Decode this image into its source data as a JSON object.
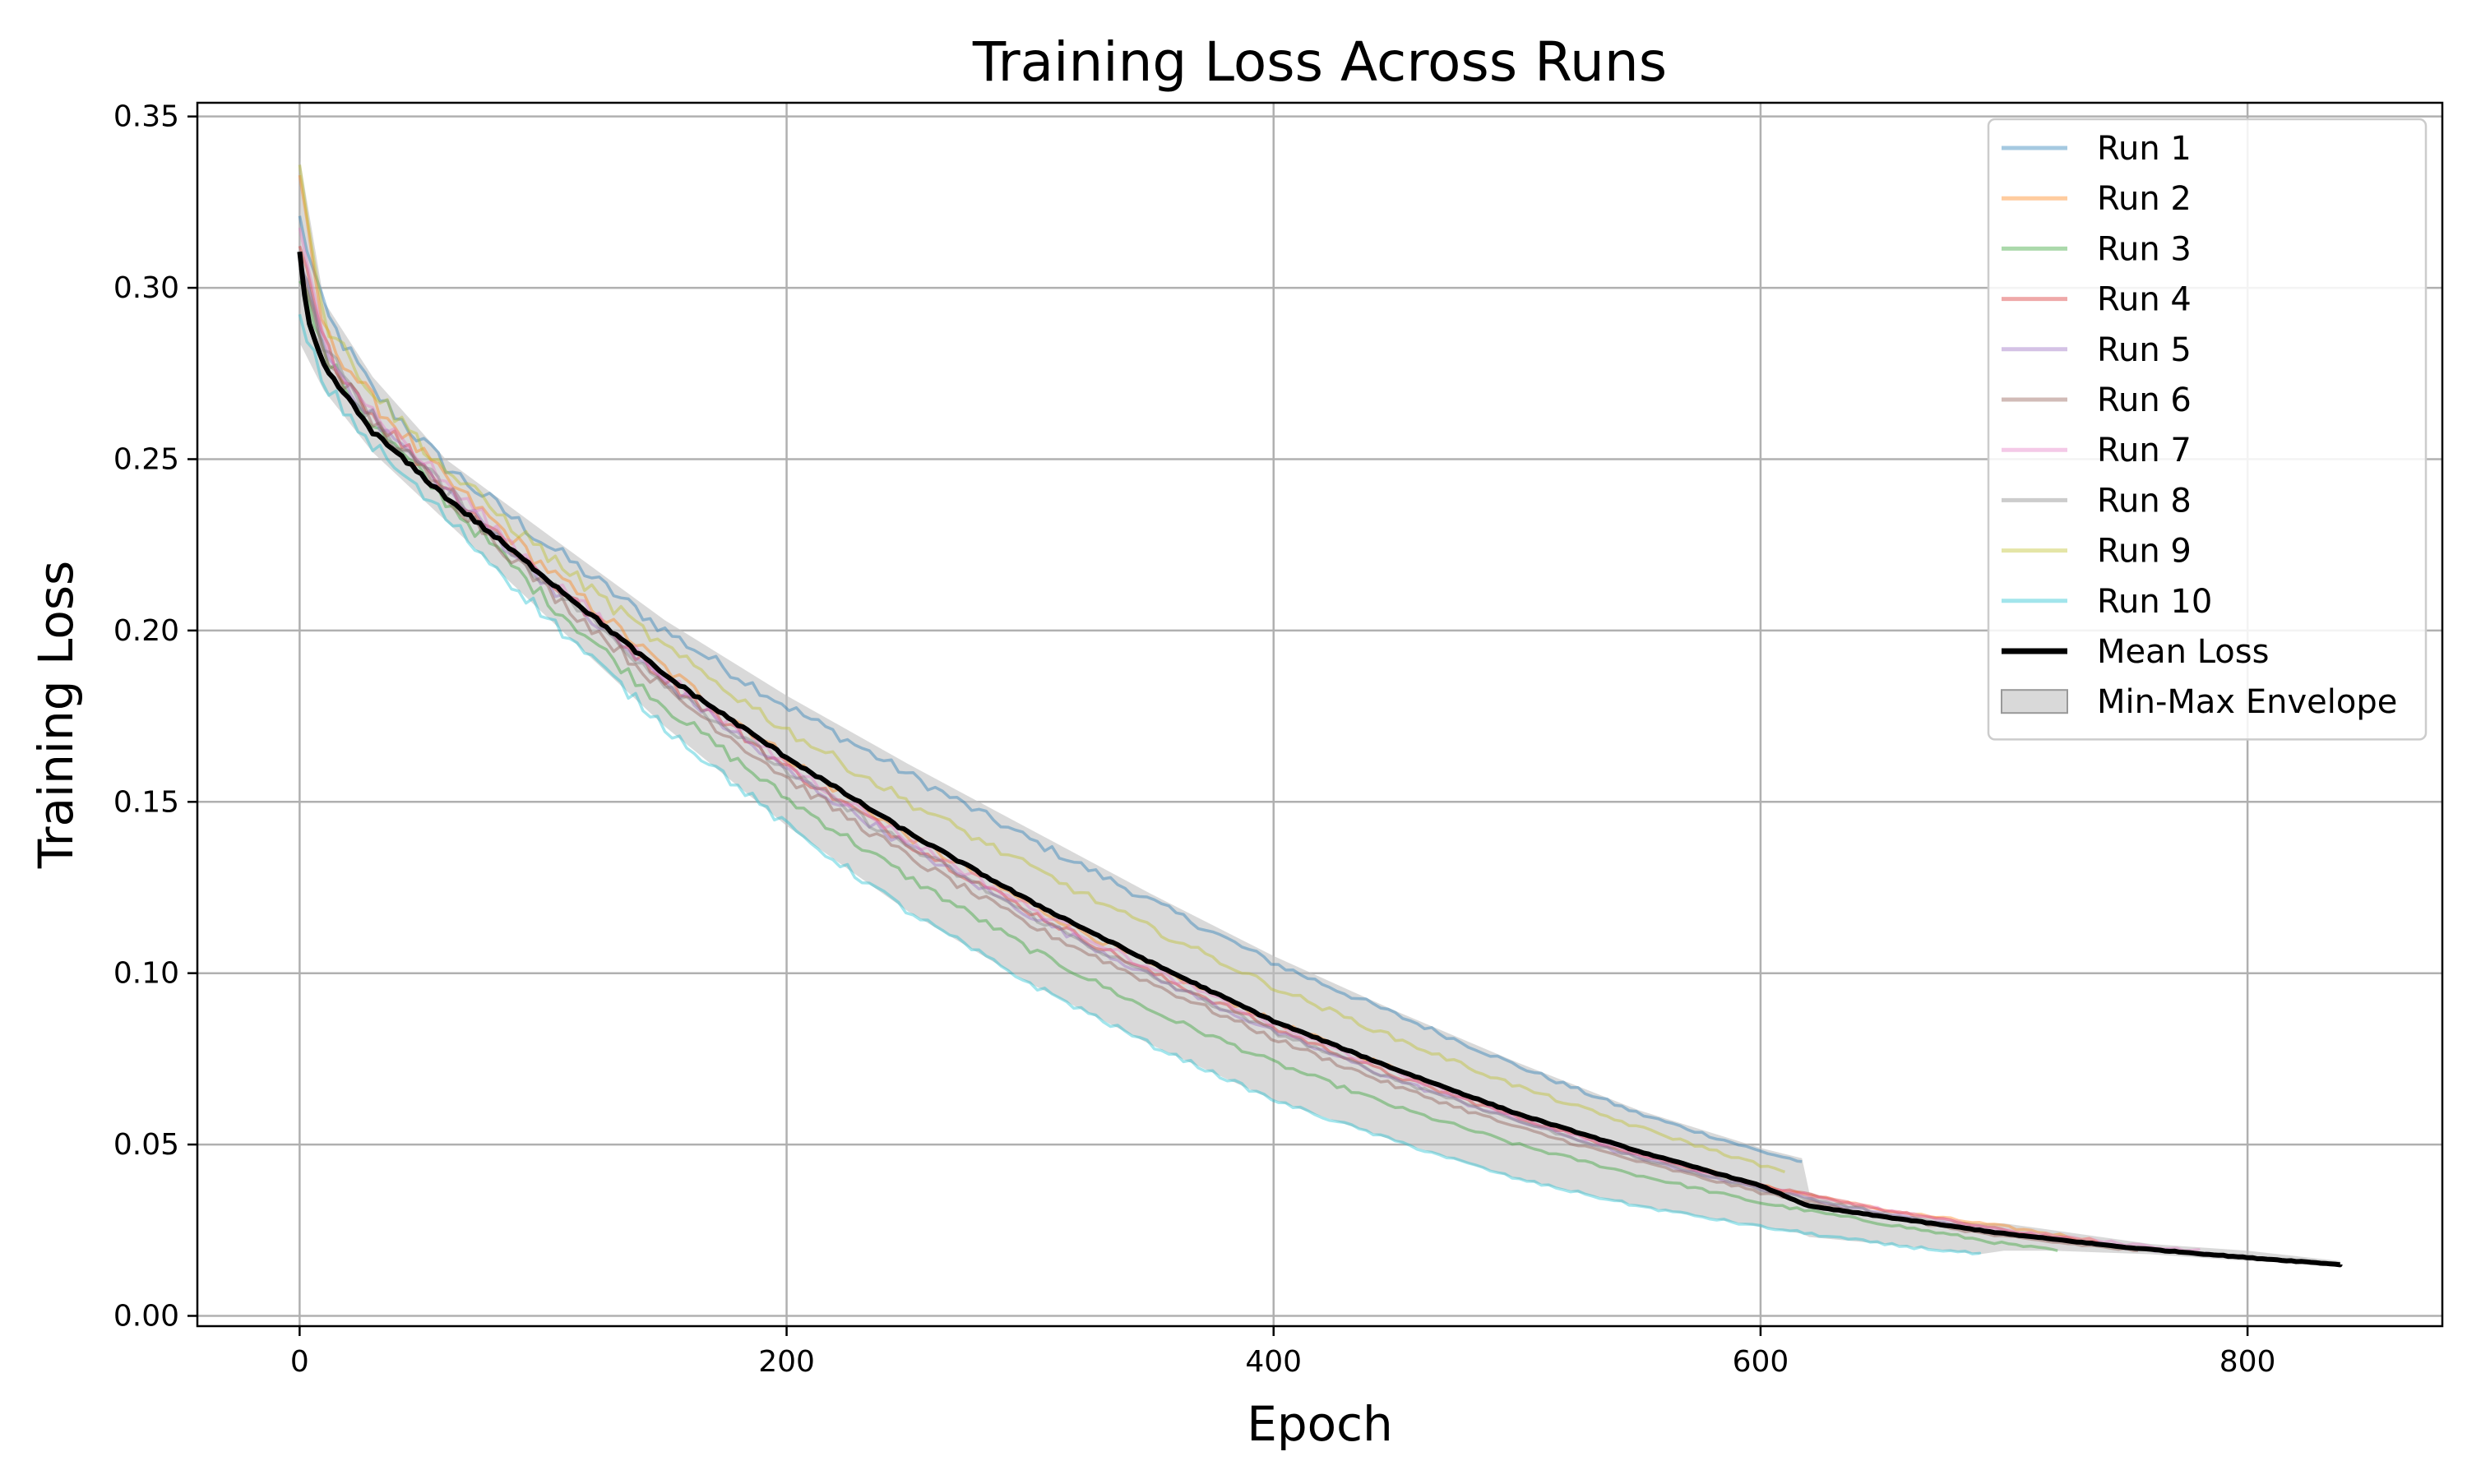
{
  "chart_data": {
    "type": "line",
    "title": "Training Loss Across Runs",
    "xlabel": "Epoch",
    "ylabel": "Training Loss",
    "xlim": [
      -42,
      880
    ],
    "ylim": [
      -0.003,
      0.354
    ],
    "xticks": [
      0,
      200,
      400,
      600,
      800
    ],
    "xtick_labels": [
      "0",
      "200",
      "400",
      "600",
      "800"
    ],
    "yticks": [
      0.0,
      0.05,
      0.1,
      0.15,
      0.2,
      0.25,
      0.3,
      0.35
    ],
    "ytick_labels": [
      "0.00",
      "0.05",
      "0.10",
      "0.15",
      "0.20",
      "0.25",
      "0.30",
      "0.35"
    ],
    "grid": true,
    "legend_position": "top-right",
    "envelope": {
      "name": "Min-Max Envelope",
      "color": "#bfbfbf",
      "x": [
        0,
        10,
        30,
        60,
        100,
        150,
        200,
        250,
        300,
        350,
        400,
        450,
        500,
        550,
        600,
        617,
        620,
        650,
        690,
        700,
        720,
        760,
        800,
        838
      ],
      "min": [
        0.284,
        0.27,
        0.252,
        0.232,
        0.205,
        0.172,
        0.143,
        0.118,
        0.097,
        0.079,
        0.063,
        0.051,
        0.04,
        0.032,
        0.026,
        0.024,
        0.023,
        0.021,
        0.018,
        0.019,
        0.019,
        0.018,
        0.016,
        0.015
      ],
      "max": [
        0.338,
        0.296,
        0.274,
        0.25,
        0.229,
        0.203,
        0.181,
        0.161,
        0.142,
        0.123,
        0.105,
        0.089,
        0.074,
        0.06,
        0.049,
        0.046,
        0.036,
        0.03,
        0.027,
        0.027,
        0.025,
        0.021,
        0.019,
        0.016
      ]
    },
    "series": [
      {
        "name": "Run 1",
        "color": "#1f77b4",
        "opacity": 0.4,
        "x": [
          0,
          10,
          30,
          60,
          100,
          150,
          200,
          250,
          300,
          350,
          400,
          450,
          500,
          550,
          600,
          617
        ],
        "y": [
          0.32,
          0.293,
          0.27,
          0.248,
          0.226,
          0.2,
          0.178,
          0.158,
          0.139,
          0.121,
          0.103,
          0.088,
          0.073,
          0.059,
          0.048,
          0.045
        ]
      },
      {
        "name": "Run 2",
        "color": "#ff7f0e",
        "opacity": 0.4,
        "x": [
          0,
          10,
          30,
          60,
          100,
          150,
          200,
          250,
          300,
          350,
          400,
          450,
          500,
          550,
          600,
          650,
          700,
          738
        ],
        "y": [
          0.33,
          0.287,
          0.267,
          0.244,
          0.219,
          0.189,
          0.163,
          0.14,
          0.12,
          0.102,
          0.086,
          0.072,
          0.059,
          0.048,
          0.038,
          0.031,
          0.026,
          0.022
        ]
      },
      {
        "name": "Run 3",
        "color": "#2ca02c",
        "opacity": 0.4,
        "x": [
          0,
          10,
          30,
          60,
          100,
          150,
          200,
          250,
          300,
          350,
          400,
          450,
          500,
          550,
          600,
          650,
          700,
          722
        ],
        "y": [
          0.305,
          0.28,
          0.26,
          0.238,
          0.21,
          0.178,
          0.151,
          0.128,
          0.107,
          0.089,
          0.074,
          0.061,
          0.05,
          0.041,
          0.033,
          0.027,
          0.021,
          0.019
        ]
      },
      {
        "name": "Run 4",
        "color": "#d62728",
        "opacity": 0.4,
        "x": [
          0,
          10,
          30,
          60,
          100,
          150,
          200,
          250,
          300,
          350,
          400,
          450,
          500,
          550,
          600,
          650,
          700,
          740
        ],
        "y": [
          0.312,
          0.283,
          0.263,
          0.242,
          0.216,
          0.186,
          0.16,
          0.138,
          0.118,
          0.1,
          0.084,
          0.07,
          0.058,
          0.047,
          0.038,
          0.031,
          0.025,
          0.021
        ]
      },
      {
        "name": "Run 5",
        "color": "#9467bd",
        "opacity": 0.4,
        "x": [
          0,
          10,
          30,
          60,
          100,
          150,
          200,
          250,
          300,
          350,
          400,
          450,
          500,
          550,
          600,
          650,
          700,
          750,
          800,
          815
        ],
        "y": [
          0.31,
          0.282,
          0.262,
          0.241,
          0.215,
          0.185,
          0.159,
          0.137,
          0.117,
          0.099,
          0.083,
          0.069,
          0.057,
          0.046,
          0.037,
          0.03,
          0.024,
          0.02,
          0.017,
          0.016
        ]
      },
      {
        "name": "Run 6",
        "color": "#8c564b",
        "opacity": 0.4,
        "x": [
          0,
          10,
          30,
          60,
          100,
          150,
          200,
          250,
          300,
          350,
          400,
          450,
          500,
          550,
          600,
          650,
          700,
          755
        ],
        "y": [
          0.306,
          0.281,
          0.261,
          0.24,
          0.213,
          0.183,
          0.157,
          0.134,
          0.114,
          0.097,
          0.081,
          0.067,
          0.055,
          0.045,
          0.036,
          0.029,
          0.023,
          0.019
        ]
      },
      {
        "name": "Run 7",
        "color": "#e377c2",
        "opacity": 0.4,
        "x": [
          0,
          10,
          30,
          60,
          100,
          150,
          200,
          250,
          300,
          350,
          400,
          450,
          500,
          550,
          600,
          650,
          700,
          750,
          780
        ],
        "y": [
          0.315,
          0.284,
          0.264,
          0.243,
          0.217,
          0.187,
          0.161,
          0.139,
          0.119,
          0.101,
          0.085,
          0.071,
          0.058,
          0.047,
          0.038,
          0.031,
          0.025,
          0.021,
          0.019
        ]
      },
      {
        "name": "Run 8",
        "color": "#7f7f7f",
        "opacity": 0.4,
        "x": [
          0,
          10,
          30,
          60,
          100,
          150,
          200,
          250,
          300,
          350,
          400,
          450,
          500,
          550,
          600,
          650,
          700,
          750,
          800,
          838
        ],
        "y": [
          0.308,
          0.282,
          0.262,
          0.241,
          0.215,
          0.185,
          0.159,
          0.137,
          0.117,
          0.099,
          0.083,
          0.069,
          0.057,
          0.046,
          0.037,
          0.03,
          0.024,
          0.02,
          0.017,
          0.015
        ]
      },
      {
        "name": "Run 9",
        "color": "#bcbd22",
        "opacity": 0.4,
        "x": [
          0,
          10,
          30,
          60,
          100,
          150,
          200,
          250,
          300,
          350,
          400,
          450,
          500,
          550,
          600,
          610
        ],
        "y": [
          0.338,
          0.29,
          0.27,
          0.247,
          0.223,
          0.195,
          0.171,
          0.15,
          0.131,
          0.113,
          0.096,
          0.081,
          0.067,
          0.055,
          0.044,
          0.042
        ]
      },
      {
        "name": "Run 10",
        "color": "#17becf",
        "opacity": 0.4,
        "x": [
          0,
          10,
          30,
          60,
          100,
          150,
          200,
          250,
          300,
          350,
          400,
          450,
          500,
          550,
          600,
          650,
          690
        ],
        "y": [
          0.29,
          0.272,
          0.254,
          0.233,
          0.205,
          0.172,
          0.143,
          0.118,
          0.097,
          0.079,
          0.063,
          0.051,
          0.04,
          0.032,
          0.026,
          0.021,
          0.018
        ]
      },
      {
        "name": "Mean Loss",
        "color": "#000000",
        "opacity": 1.0,
        "x": [
          0,
          3,
          10,
          30,
          60,
          100,
          150,
          200,
          250,
          300,
          350,
          400,
          450,
          500,
          550,
          600,
          620,
          650,
          700,
          750,
          800,
          838
        ],
        "y": [
          0.31,
          0.291,
          0.277,
          0.258,
          0.239,
          0.216,
          0.187,
          0.163,
          0.141,
          0.121,
          0.103,
          0.086,
          0.072,
          0.059,
          0.048,
          0.038,
          0.032,
          0.029,
          0.024,
          0.02,
          0.017,
          0.015
        ]
      }
    ]
  }
}
